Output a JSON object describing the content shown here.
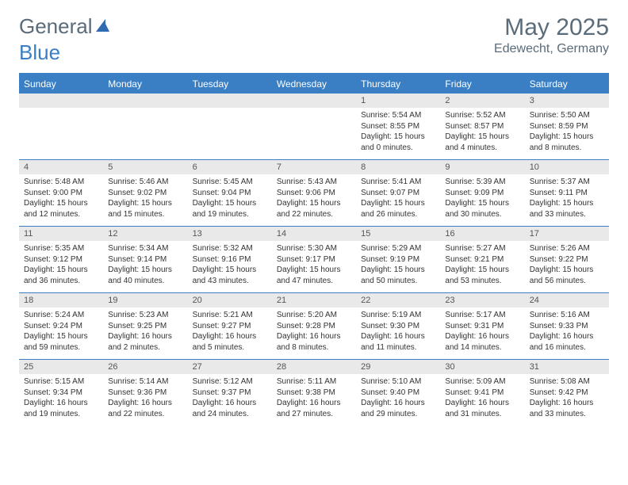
{
  "logo": {
    "part1": "General",
    "part2": "Blue"
  },
  "title": "May 2025",
  "location": "Edewecht, Germany",
  "colors": {
    "accent": "#3a7fc4",
    "header_text": "#5a6b7a",
    "numrow_bg": "#e9e9e9",
    "text": "#333333"
  },
  "day_headers": [
    "Sunday",
    "Monday",
    "Tuesday",
    "Wednesday",
    "Thursday",
    "Friday",
    "Saturday"
  ],
  "weeks": [
    {
      "nums": [
        "",
        "",
        "",
        "",
        "1",
        "2",
        "3"
      ],
      "cells": [
        null,
        null,
        null,
        null,
        {
          "sunrise": "5:54 AM",
          "sunset": "8:55 PM",
          "dl1": "Daylight: 15 hours",
          "dl2": "and 0 minutes."
        },
        {
          "sunrise": "5:52 AM",
          "sunset": "8:57 PM",
          "dl1": "Daylight: 15 hours",
          "dl2": "and 4 minutes."
        },
        {
          "sunrise": "5:50 AM",
          "sunset": "8:59 PM",
          "dl1": "Daylight: 15 hours",
          "dl2": "and 8 minutes."
        }
      ]
    },
    {
      "nums": [
        "4",
        "5",
        "6",
        "7",
        "8",
        "9",
        "10"
      ],
      "cells": [
        {
          "sunrise": "5:48 AM",
          "sunset": "9:00 PM",
          "dl1": "Daylight: 15 hours",
          "dl2": "and 12 minutes."
        },
        {
          "sunrise": "5:46 AM",
          "sunset": "9:02 PM",
          "dl1": "Daylight: 15 hours",
          "dl2": "and 15 minutes."
        },
        {
          "sunrise": "5:45 AM",
          "sunset": "9:04 PM",
          "dl1": "Daylight: 15 hours",
          "dl2": "and 19 minutes."
        },
        {
          "sunrise": "5:43 AM",
          "sunset": "9:06 PM",
          "dl1": "Daylight: 15 hours",
          "dl2": "and 22 minutes."
        },
        {
          "sunrise": "5:41 AM",
          "sunset": "9:07 PM",
          "dl1": "Daylight: 15 hours",
          "dl2": "and 26 minutes."
        },
        {
          "sunrise": "5:39 AM",
          "sunset": "9:09 PM",
          "dl1": "Daylight: 15 hours",
          "dl2": "and 30 minutes."
        },
        {
          "sunrise": "5:37 AM",
          "sunset": "9:11 PM",
          "dl1": "Daylight: 15 hours",
          "dl2": "and 33 minutes."
        }
      ]
    },
    {
      "nums": [
        "11",
        "12",
        "13",
        "14",
        "15",
        "16",
        "17"
      ],
      "cells": [
        {
          "sunrise": "5:35 AM",
          "sunset": "9:12 PM",
          "dl1": "Daylight: 15 hours",
          "dl2": "and 36 minutes."
        },
        {
          "sunrise": "5:34 AM",
          "sunset": "9:14 PM",
          "dl1": "Daylight: 15 hours",
          "dl2": "and 40 minutes."
        },
        {
          "sunrise": "5:32 AM",
          "sunset": "9:16 PM",
          "dl1": "Daylight: 15 hours",
          "dl2": "and 43 minutes."
        },
        {
          "sunrise": "5:30 AM",
          "sunset": "9:17 PM",
          "dl1": "Daylight: 15 hours",
          "dl2": "and 47 minutes."
        },
        {
          "sunrise": "5:29 AM",
          "sunset": "9:19 PM",
          "dl1": "Daylight: 15 hours",
          "dl2": "and 50 minutes."
        },
        {
          "sunrise": "5:27 AM",
          "sunset": "9:21 PM",
          "dl1": "Daylight: 15 hours",
          "dl2": "and 53 minutes."
        },
        {
          "sunrise": "5:26 AM",
          "sunset": "9:22 PM",
          "dl1": "Daylight: 15 hours",
          "dl2": "and 56 minutes."
        }
      ]
    },
    {
      "nums": [
        "18",
        "19",
        "20",
        "21",
        "22",
        "23",
        "24"
      ],
      "cells": [
        {
          "sunrise": "5:24 AM",
          "sunset": "9:24 PM",
          "dl1": "Daylight: 15 hours",
          "dl2": "and 59 minutes."
        },
        {
          "sunrise": "5:23 AM",
          "sunset": "9:25 PM",
          "dl1": "Daylight: 16 hours",
          "dl2": "and 2 minutes."
        },
        {
          "sunrise": "5:21 AM",
          "sunset": "9:27 PM",
          "dl1": "Daylight: 16 hours",
          "dl2": "and 5 minutes."
        },
        {
          "sunrise": "5:20 AM",
          "sunset": "9:28 PM",
          "dl1": "Daylight: 16 hours",
          "dl2": "and 8 minutes."
        },
        {
          "sunrise": "5:19 AM",
          "sunset": "9:30 PM",
          "dl1": "Daylight: 16 hours",
          "dl2": "and 11 minutes."
        },
        {
          "sunrise": "5:17 AM",
          "sunset": "9:31 PM",
          "dl1": "Daylight: 16 hours",
          "dl2": "and 14 minutes."
        },
        {
          "sunrise": "5:16 AM",
          "sunset": "9:33 PM",
          "dl1": "Daylight: 16 hours",
          "dl2": "and 16 minutes."
        }
      ]
    },
    {
      "nums": [
        "25",
        "26",
        "27",
        "28",
        "29",
        "30",
        "31"
      ],
      "cells": [
        {
          "sunrise": "5:15 AM",
          "sunset": "9:34 PM",
          "dl1": "Daylight: 16 hours",
          "dl2": "and 19 minutes."
        },
        {
          "sunrise": "5:14 AM",
          "sunset": "9:36 PM",
          "dl1": "Daylight: 16 hours",
          "dl2": "and 22 minutes."
        },
        {
          "sunrise": "5:12 AM",
          "sunset": "9:37 PM",
          "dl1": "Daylight: 16 hours",
          "dl2": "and 24 minutes."
        },
        {
          "sunrise": "5:11 AM",
          "sunset": "9:38 PM",
          "dl1": "Daylight: 16 hours",
          "dl2": "and 27 minutes."
        },
        {
          "sunrise": "5:10 AM",
          "sunset": "9:40 PM",
          "dl1": "Daylight: 16 hours",
          "dl2": "and 29 minutes."
        },
        {
          "sunrise": "5:09 AM",
          "sunset": "9:41 PM",
          "dl1": "Daylight: 16 hours",
          "dl2": "and 31 minutes."
        },
        {
          "sunrise": "5:08 AM",
          "sunset": "9:42 PM",
          "dl1": "Daylight: 16 hours",
          "dl2": "and 33 minutes."
        }
      ]
    }
  ]
}
